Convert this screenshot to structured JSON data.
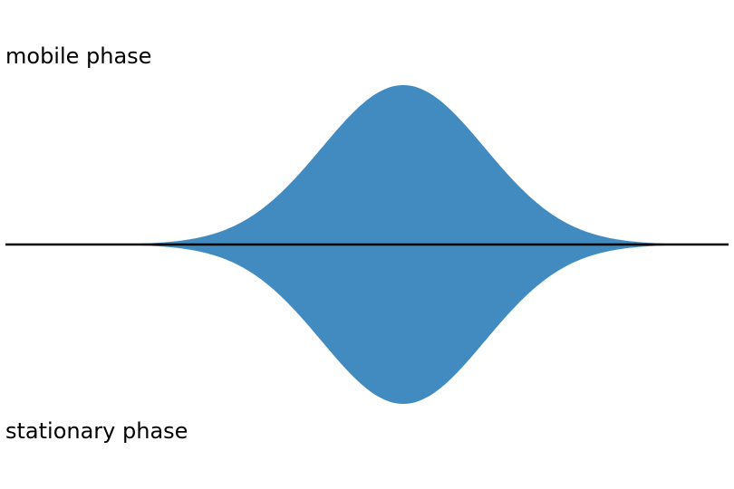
{
  "labels": {
    "top": "mobile phase",
    "bottom": "stationary phase"
  },
  "colors": {
    "peak_fill": "#428BC0",
    "baseline": "#000000"
  }
}
